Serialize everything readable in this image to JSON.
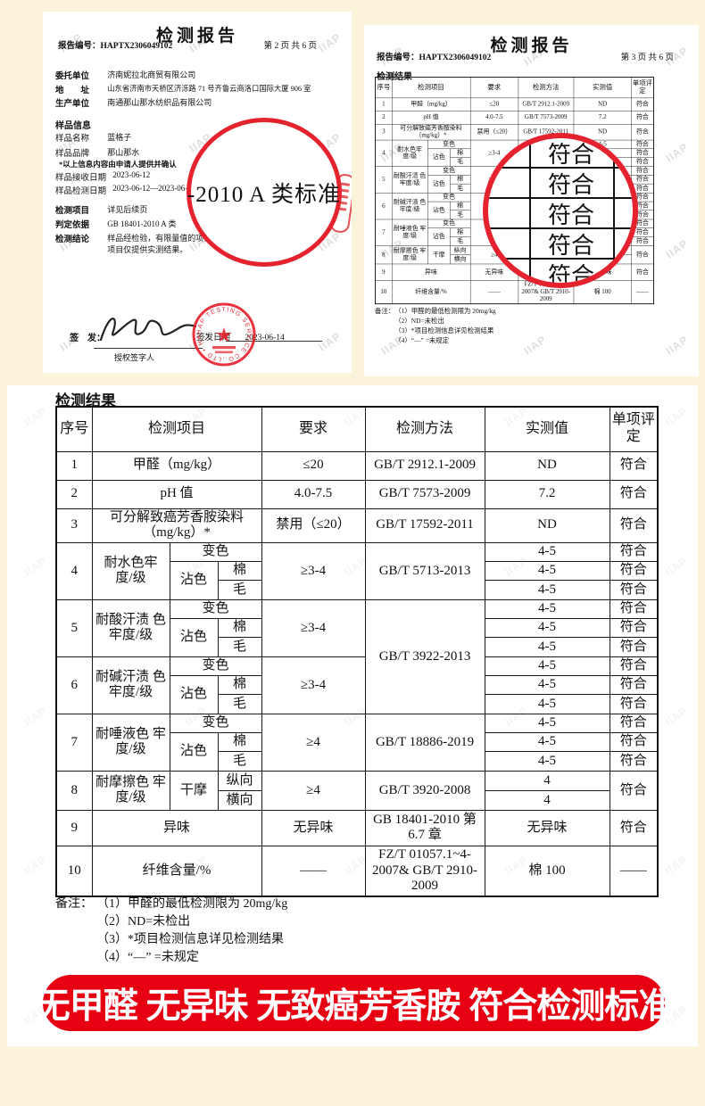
{
  "page": {
    "watermark": "IIAP",
    "background": "#fbf3da"
  },
  "colors": {
    "banner_red": "#e60012",
    "stamp_red": "#e5232e",
    "ink": "#111111"
  },
  "left_doc": {
    "title": "检测报告",
    "report_no_label": "报告编号：",
    "report_no": "HAPTX2306049102",
    "page_info": "第 2 页 共 6 页",
    "fields": [
      {
        "label": "委托单位",
        "value": "济南妮拉北商贸有限公司"
      },
      {
        "label": "地　　址",
        "value": "山东省济南市天桥区济泺路 71 号齐鲁云商洛口国际大厦 906 室"
      },
      {
        "label": "生产单位",
        "value": "南通那山那水纺织品有限公司"
      }
    ],
    "sample_heading": "样品信息",
    "sample_fields": [
      {
        "label": "样品名称",
        "value": "蓝格子"
      },
      {
        "label": "样品品牌",
        "value": "那山那水"
      }
    ],
    "confirm_note": "*以上信息内容由申请人提供并确认",
    "date_fields": [
      {
        "label": "样品接收日期",
        "value": "2023-06-12"
      },
      {
        "label": "样品检测日期",
        "value": "2023-06-12—2023-06-14"
      }
    ],
    "result_fields": [
      {
        "label": "检测项目",
        "value": "详见后续页"
      },
      {
        "label": "判定依据",
        "value": "GB 18401-2010 A 类"
      }
    ],
    "conclusion_label": "检测结论",
    "conclusion_line1": "样品经检验，有限量值的项目符合G",
    "conclusion_line2": "项目仅提供实测结果。",
    "circle_text": "-2010 A 类标准",
    "sign_label": "签　发：",
    "signer_title": "授权签字人",
    "issue_date_label": "签发日期",
    "issue_date": "2023-06-14",
    "stamp_ring_text": "HAP TESTING SERVICE CO.,LTD • HAP •"
  },
  "right_doc": {
    "title": "检测报告",
    "report_no_label": "报告编号：",
    "report_no": "HAPTX2306049102",
    "page_info": "第 3 页 共 6 页",
    "section_heading": "检测结果",
    "circle_rows": [
      "符合",
      "符合",
      "符合",
      "符合",
      "符合"
    ]
  },
  "results_section": {
    "heading": "检测结果",
    "table": {
      "h_no": "序号",
      "h_item": "检测项目",
      "h_req": "要求",
      "h_method": "检测方法",
      "h_value": "实测值",
      "h_verdict": "单项评定",
      "r1": {
        "no": "1",
        "item": "甲醛（mg/kg）",
        "req": "≤20",
        "method": "GB/T 2912.1-2009",
        "value": "ND",
        "verdict": "符合"
      },
      "r2": {
        "no": "2",
        "item": "pH 值",
        "req": "4.0-7.5",
        "method": "GB/T 7573-2009",
        "value": "7.2",
        "verdict": "符合"
      },
      "r3": {
        "no": "3",
        "item": "可分解致癌芳香胺染料 （mg/kg）*",
        "req": "禁用（≤20）",
        "method": "GB/T 17592-2011",
        "value": "ND",
        "verdict": "符合"
      },
      "r4": {
        "no": "4",
        "item": "耐水色牢 度/级",
        "change": "变色",
        "stain": "沾色",
        "cotton": "棉",
        "wool": "毛",
        "req": "≥3-4",
        "method": "GB/T 5713-2013",
        "values": [
          "4-5",
          "4-5",
          "4-5"
        ],
        "verdicts": [
          "符合",
          "符合",
          "符合"
        ]
      },
      "r5": {
        "no": "5",
        "item": "耐酸汗渍 色牢度/级",
        "change": "变色",
        "stain": "沾色",
        "cotton": "棉",
        "wool": "毛",
        "req": "≥3-4",
        "method": "GB/T 3922-2013",
        "values": [
          "4-5",
          "4-5",
          "4-5"
        ],
        "verdicts": [
          "符合",
          "符合",
          "符合"
        ]
      },
      "r6": {
        "no": "6",
        "item": "耐碱汗渍 色牢度/级",
        "change": "变色",
        "stain": "沾色",
        "cotton": "棉",
        "wool": "毛",
        "req": "≥3-4",
        "values": [
          "4-5",
          "4-5",
          "4-5"
        ],
        "verdicts": [
          "符合",
          "符合",
          "符合"
        ]
      },
      "r7": {
        "no": "7",
        "item": "耐唾液色 牢度/级",
        "change": "变色",
        "stain": "沾色",
        "cotton": "棉",
        "wool": "毛",
        "req": "≥4",
        "method": "GB/T 18886-2019",
        "values": [
          "4-5",
          "4-5",
          "4-5"
        ],
        "verdicts": [
          "符合",
          "符合",
          "符合"
        ]
      },
      "r8": {
        "no": "8",
        "item": "耐摩擦色 牢度/级",
        "dry": "干摩",
        "warp": "纵向",
        "weft": "横向",
        "req": "≥4",
        "method": "GB/T 3920-2008",
        "values": [
          "4",
          "4"
        ],
        "verdict": "符合"
      },
      "r9": {
        "no": "9",
        "item": "异味",
        "req": "无异味",
        "method": "GB 18401-2010 第 6.7 章",
        "value": "无异味",
        "verdict": "符合"
      },
      "r10": {
        "no": "10",
        "item": "纤维含量/%",
        "req": "——",
        "method": "FZ/T 01057.1~4-2007& GB/T 2910-2009",
        "value": "棉 100",
        "verdict": "——"
      }
    },
    "notes_label": "备注：",
    "notes": [
      "（1）甲醛的最低检测限为 20mg/kg",
      "（2）ND=未检出",
      "（3）*项目检测信息详见检测结果",
      "（4）“—” =未规定"
    ]
  },
  "banner": {
    "text": "无甲醛 无异味 无致癌芳香胺 符合检测标准",
    "background": "#e60012"
  }
}
